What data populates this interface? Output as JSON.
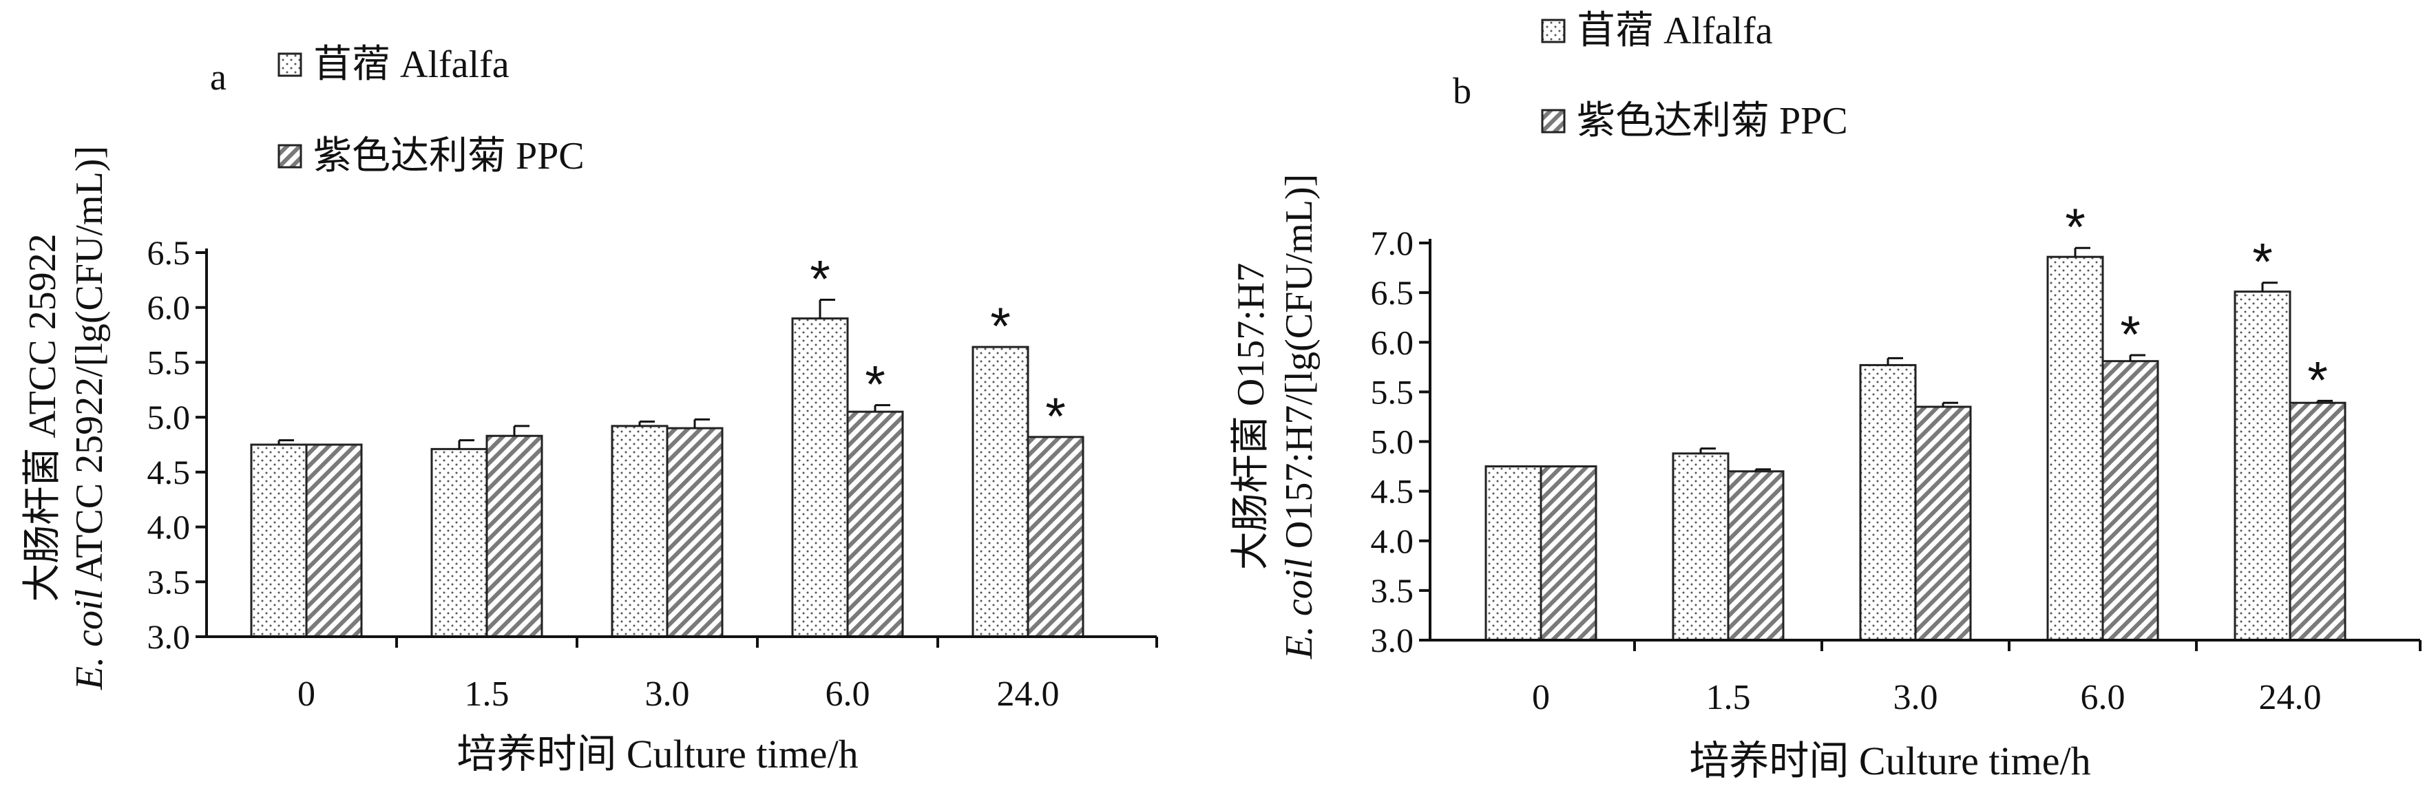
{
  "chart_data": [
    {
      "type": "bar",
      "panel_label": "a",
      "categories": [
        "0",
        "1.5",
        "3.0",
        "6.0",
        "24.0"
      ],
      "series": [
        {
          "name": "苜蓿 Alfalfa",
          "values": [
            4.75,
            4.71,
            4.92,
            5.9,
            5.64
          ],
          "errors": [
            0.04,
            0.08,
            0.04,
            0.17,
            0.0
          ],
          "significant": [
            false,
            false,
            false,
            true,
            true
          ],
          "pattern": "dots"
        },
        {
          "name": "紫色达利菊  PPC",
          "values": [
            4.75,
            4.83,
            4.9,
            5.05,
            4.82
          ],
          "errors": [
            0.0,
            0.09,
            0.08,
            0.06,
            0.0
          ],
          "significant": [
            false,
            false,
            false,
            true,
            true
          ],
          "pattern": "hatch"
        }
      ],
      "xlabel": "培养时间 Culture time/h",
      "ylabel_zh": "大肠杆菌  ATCC 25922",
      "ylabel_en_italic": "E. coil",
      "ylabel_en_rest": " ATCC 25922/[lg(CFU/mL)]",
      "yticks": [
        "3.0",
        "3.5",
        "4.0",
        "4.5",
        "5.0",
        "5.5",
        "6.0",
        "6.5"
      ],
      "ylim": [
        3.0,
        6.5
      ],
      "significance_mark": "*",
      "legend_position": "top-left"
    },
    {
      "type": "bar",
      "panel_label": "b",
      "categories": [
        "0",
        "1.5",
        "3.0",
        "6.0",
        "24.0"
      ],
      "series": [
        {
          "name": "苜蓿 Alfalfa",
          "values": [
            4.75,
            4.88,
            5.77,
            6.86,
            6.51
          ],
          "errors": [
            0.0,
            0.05,
            0.07,
            0.09,
            0.09
          ],
          "significant": [
            false,
            false,
            false,
            true,
            true
          ],
          "pattern": "dots"
        },
        {
          "name": "紫色达利菊  PPC",
          "values": [
            4.75,
            4.7,
            5.35,
            5.81,
            5.39
          ],
          "errors": [
            0.0,
            0.02,
            0.04,
            0.06,
            0.02
          ],
          "significant": [
            false,
            false,
            false,
            true,
            true
          ],
          "pattern": "hatch"
        }
      ],
      "xlabel": "培养时间 Culture time/h",
      "ylabel_zh": "大肠杆菌  O157:H7",
      "ylabel_en_italic": "E. coil",
      "ylabel_en_rest": " O157:H7/[lg(CFU/mL)]",
      "yticks": [
        "3.0",
        "3.5",
        "4.0",
        "4.5",
        "5.0",
        "5.5",
        "6.0",
        "6.5",
        "7.0"
      ],
      "ylim": [
        3.0,
        7.0
      ],
      "significance_mark": "*",
      "legend_position": "top-left"
    }
  ]
}
